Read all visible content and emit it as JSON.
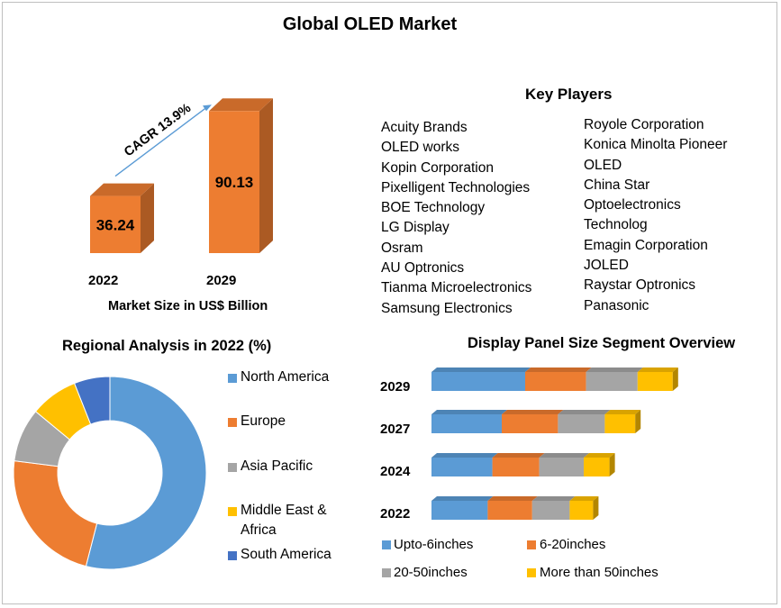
{
  "title": "Global OLED Market",
  "colors": {
    "orange": "#ed7d31",
    "blue": "#5b9bd5",
    "gray": "#a5a5a5",
    "yellow": "#ffc000",
    "darkblue": "#4472c4"
  },
  "key_players": {
    "title": "Key Players",
    "col1": [
      "Acuity Brands",
      "OLED works",
      "Kopin Corporation",
      "Pixelligent Technologies",
      "BOE Technology",
      "LG Display",
      "Osram",
      "AU Optronics",
      "Tianma Microelectronics",
      "Samsung  Electronics"
    ],
    "col2": [
      "Royole Corporation",
      "Konica Minolta Pioneer",
      "OLED",
      "China Star",
      "Optoelectronics",
      "Technolog",
      "Emagin Corporation",
      "JOLED",
      "Raystar Optronics",
      "Panasonic"
    ]
  },
  "chart_data": [
    {
      "type": "bar",
      "categories": [
        "2022",
        "2029"
      ],
      "values": [
        36.24,
        90.13
      ],
      "value_labels": [
        "36.24",
        "90.13"
      ],
      "annotation": "CAGR 13.9%",
      "xlabel": "Market Size in US$ Billion",
      "ylim": [
        0,
        100
      ]
    },
    {
      "type": "pie",
      "title": "Regional Analysis in 2022 (%)",
      "labels": [
        "North America",
        "Europe",
        "Asia Pacific",
        "Middle East & Africa",
        "South America"
      ],
      "legend_lines": [
        [
          "North America"
        ],
        [
          "Europe"
        ],
        [
          "Asia Pacific"
        ],
        [
          "Middle East &",
          "Africa"
        ],
        [
          "South America"
        ]
      ],
      "values": [
        54,
        23,
        9,
        8,
        6
      ],
      "colors": [
        "#5b9bd5",
        "#ed7d31",
        "#a5a5a5",
        "#ffc000",
        "#4472c4"
      ]
    },
    {
      "type": "bar",
      "title": "Display Panel Size Segment Overview",
      "orientation": "horizontal-stacked",
      "categories": [
        "2029",
        "2027",
        "2024",
        "2022"
      ],
      "series": [
        {
          "name": "Upto-6inches",
          "values": [
            40,
            30,
            26,
            24
          ],
          "color": "#5b9bd5"
        },
        {
          "name": "6-20inches",
          "values": [
            26,
            24,
            20,
            19
          ],
          "color": "#ed7d31"
        },
        {
          "name": "20-50inches",
          "values": [
            22,
            20,
            19,
            16
          ],
          "color": "#a5a5a5"
        },
        {
          "name": "More than 50inches",
          "values": [
            15,
            13,
            11,
            10
          ],
          "color": "#ffc000"
        }
      ]
    }
  ]
}
